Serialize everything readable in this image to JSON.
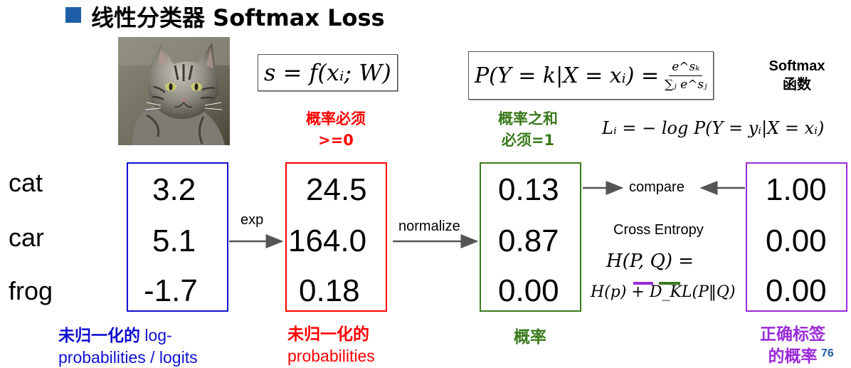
{
  "title": "线性分类器 Softmax Loss",
  "score_formula": "s = f(xᵢ; W)",
  "prob_formula": {
    "lhs": "P(Y = k|X = xᵢ) =",
    "numerator": "e^sₖ",
    "denominator": "∑ⱼ e^sⱼ"
  },
  "softmax_label": [
    "Softmax",
    "函数"
  ],
  "loss_formula": "Lᵢ = − log P(Y = yᵢ|X = xᵢ)",
  "notes": {
    "nonneg": [
      "概率必须",
      ">=0"
    ],
    "sum_one": [
      "概率之和",
      "必须=1"
    ]
  },
  "classes": [
    "cat",
    "car",
    "frog"
  ],
  "columns": {
    "logits": [
      "3.2",
      "5.1",
      "-1.7"
    ],
    "exp": [
      "24.5",
      "164.0",
      "0.18"
    ],
    "probs": [
      "0.13",
      "0.87",
      "0.00"
    ],
    "labels": [
      "1.00",
      "0.00",
      "0.00"
    ]
  },
  "arrows": {
    "exp": "exp",
    "normalize": "normalize",
    "compare": "compare"
  },
  "cross_entropy": {
    "label": "Cross Entropy",
    "line1": "H(P, Q) =",
    "line2": "H(p) + D_KL(P‖Q)"
  },
  "captions": {
    "logits_cn": "未归一化的",
    "logits_en1": " log-",
    "logits_en2": "probabilities / logits",
    "exp_cn": "未归一化的",
    "exp_en": "probabilities",
    "probs_cn": "概率",
    "labels_cn1": "正确标签",
    "labels_cn2": "的概率"
  },
  "page_number": "76",
  "colors": {
    "blue": "#1010d0",
    "red": "#ff0000",
    "green": "#3a7a1c",
    "purple": "#9a2bd8",
    "title_bullet": "#1f5ea8"
  },
  "icons": [
    "cat-photo"
  ]
}
